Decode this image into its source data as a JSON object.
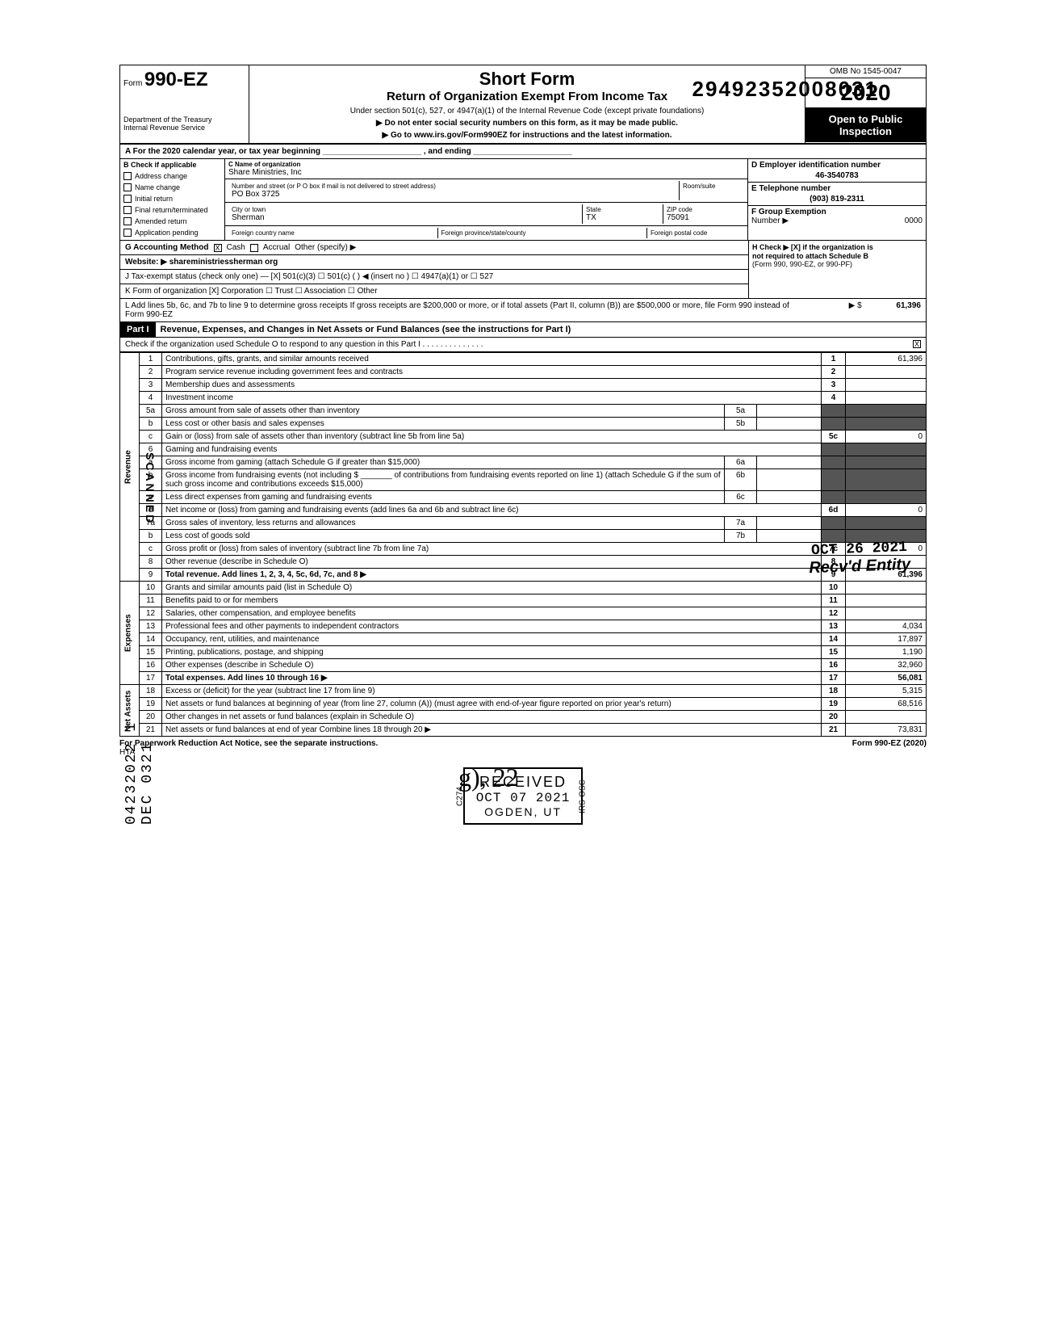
{
  "dln": "29492352008031",
  "form": {
    "prefix": "Form",
    "number": "990-EZ",
    "dept": "Department of the Treasury",
    "irs": "Internal Revenue Service"
  },
  "title": {
    "main": "Short Form",
    "sub": "Return of Organization Exempt From Income Tax",
    "line1": "Under section 501(c), 527, or 4947(a)(1) of the Internal Revenue Code (except private foundations)",
    "line2": "▶ Do not enter social security numbers on this form, as it may be made public.",
    "line3": "▶ Go to www.irs.gov/Form990EZ for instructions and the latest information."
  },
  "omb": "OMB No 1545-0047",
  "year": "2020",
  "open": {
    "l1": "Open to Public",
    "l2": "Inspection"
  },
  "rowA": "A   For the 2020 calendar year, or tax year beginning ______________________ , and ending ______________________",
  "colB": {
    "hdr": "B   Check if applicable",
    "items": [
      "Address change",
      "Name change",
      "Initial return",
      "Final return/terminated",
      "Amended return",
      "Application pending"
    ]
  },
  "colC": {
    "nameLbl": "C  Name of organization",
    "name": "Share Ministries, Inc",
    "addrLbl": "Number and street (or P O box if mail is not delivered to street address)",
    "addr": "PO Box 3725",
    "roomLbl": "Room/suite",
    "cityLbl": "City or town",
    "city": "Sherman",
    "stateLbl": "State",
    "state": "TX",
    "zipLbl": "ZIP code",
    "zip": "75091",
    "fcLbl": "Foreign country name",
    "fpLbl": "Foreign province/state/county",
    "fzLbl": "Foreign postal code"
  },
  "colD": {
    "einLbl": "D  Employer identification number",
    "ein": "46-3540783",
    "telLbl": "E  Telephone number",
    "tel": "(903) 819-2311",
    "grpLbl": "F  Group Exemption",
    "grpNumLbl": "Number ▶",
    "grpNum": "0000"
  },
  "rowG": {
    "label": "G   Accounting Method",
    "cash": "Cash",
    "accrual": "Accrual",
    "other": "Other (specify) ▶",
    "website": "Website: ▶ shareministriessherman org"
  },
  "rowH": {
    "l1": "H  Check ▶ [X] if the organization is",
    "l2": "not required to attach Schedule B",
    "l3": "(Form 990, 990-EZ, or 990-PF)"
  },
  "rowJ": "J    Tax-exempt status (check only one) —   [X] 501(c)(3)     ☐ 501(c) (      ) ◀ (insert no )    ☐ 4947(a)(1) or    ☐ 527",
  "rowK": "K   Form of organization        [X] Corporation        ☐ Trust        ☐ Association        ☐ Other",
  "rowL": {
    "text": "L   Add lines 5b, 6c, and 7b to line 9 to determine gross receipts  If gross receipts are $200,000 or more, or if total assets (Part II, column (B)) are $500,000 or more, file Form 990 instead of Form 990-EZ",
    "arrow": "▶ $",
    "val": "61,396"
  },
  "part1": {
    "tag": "Part I",
    "title": "Revenue, Expenses, and Changes in Net Assets or Fund Balances (see the instructions for Part I)",
    "chk": "Check if the organization used Schedule O to respond to any question in this Part I . . . . . . . . . . . . . .",
    "chkX": "X"
  },
  "sideLabels": {
    "revenue": "Revenue",
    "expenses": "Expenses",
    "netassets": "Net Assets"
  },
  "lines": [
    {
      "n": "1",
      "d": "Contributions, gifts, grants, and similar amounts received",
      "ln": "1",
      "v": "61,396"
    },
    {
      "n": "2",
      "d": "Program service revenue including government fees and contracts",
      "ln": "2",
      "v": ""
    },
    {
      "n": "3",
      "d": "Membership dues and assessments",
      "ln": "3",
      "v": ""
    },
    {
      "n": "4",
      "d": "Investment income",
      "ln": "4",
      "v": ""
    },
    {
      "n": "5a",
      "d": "Gross amount from sale of assets other than inventory",
      "sub": "5a",
      "sv": ""
    },
    {
      "n": "b",
      "d": "Less  cost or other basis and sales expenses",
      "sub": "5b",
      "sv": ""
    },
    {
      "n": "c",
      "d": "Gain or (loss) from sale of assets other than inventory (subtract line 5b from line 5a)",
      "ln": "5c",
      "v": "0"
    },
    {
      "n": "6",
      "d": "Gaming and fundraising events"
    },
    {
      "n": "a",
      "d": "Gross income from gaming (attach Schedule G if greater than $15,000)",
      "sub": "6a",
      "sv": ""
    },
    {
      "n": "b",
      "d": "Gross income from fundraising events (not including  $ _______ of contributions from fundraising events reported on line 1) (attach Schedule G if the sum of such gross income and contributions exceeds $15,000)",
      "sub": "6b",
      "sv": ""
    },
    {
      "n": "c",
      "d": "Less  direct expenses from gaming and fundraising events",
      "sub": "6c",
      "sv": ""
    },
    {
      "n": "d",
      "d": "Net income or (loss) from gaming and fundraising events (add lines 6a and 6b and subtract line 6c)",
      "ln": "6d",
      "v": "0"
    },
    {
      "n": "7a",
      "d": "Gross sales of inventory, less returns and allowances",
      "sub": "7a",
      "sv": ""
    },
    {
      "n": "b",
      "d": "Less  cost of goods sold",
      "sub": "7b",
      "sv": ""
    },
    {
      "n": "c",
      "d": "Gross profit or (loss) from sales of inventory (subtract line 7b from line 7a)",
      "ln": "7c",
      "v": "0"
    },
    {
      "n": "8",
      "d": "Other revenue (describe in Schedule O)",
      "ln": "8",
      "v": ""
    },
    {
      "n": "9",
      "d": "Total revenue. Add lines 1, 2, 3, 4, 5c, 6d, 7c, and 8",
      "ln": "9",
      "v": "61,396",
      "bold": true,
      "arrow": true
    },
    {
      "n": "10",
      "d": "Grants and similar amounts paid (list in Schedule O)",
      "ln": "10",
      "v": ""
    },
    {
      "n": "11",
      "d": "Benefits paid to or for members",
      "ln": "11",
      "v": ""
    },
    {
      "n": "12",
      "d": "Salaries, other compensation, and employee benefits",
      "ln": "12",
      "v": ""
    },
    {
      "n": "13",
      "d": "Professional fees and other payments to independent contractors",
      "ln": "13",
      "v": "4,034"
    },
    {
      "n": "14",
      "d": "Occupancy, rent, utilities, and maintenance",
      "ln": "14",
      "v": "17,897"
    },
    {
      "n": "15",
      "d": "Printing, publications, postage, and shipping",
      "ln": "15",
      "v": "1,190"
    },
    {
      "n": "16",
      "d": "Other expenses (describe in Schedule O)",
      "ln": "16",
      "v": "32,960"
    },
    {
      "n": "17",
      "d": "Total expenses. Add lines 10 through 16",
      "ln": "17",
      "v": "56,081",
      "bold": true,
      "arrow": true
    },
    {
      "n": "18",
      "d": "Excess or (deficit) for the year (subtract line 17 from line 9)",
      "ln": "18",
      "v": "5,315"
    },
    {
      "n": "19",
      "d": "Net assets or fund balances at beginning of year (from line 27, column (A)) (must agree with end-of-year figure reported on prior year's return)",
      "ln": "19",
      "v": "68,516"
    },
    {
      "n": "20",
      "d": "Other changes in net assets or fund balances (explain in Schedule O)",
      "ln": "20",
      "v": ""
    },
    {
      "n": "21",
      "d": "Net assets or fund balances at end of year  Combine lines 18 through 20",
      "ln": "21",
      "v": "73,831",
      "arrow": true
    }
  ],
  "footer": {
    "left": "For Paperwork Reduction Act Notice, see the separate instructions.",
    "hta": "HTA",
    "right": "Form 990-EZ (2020)"
  },
  "stamps": {
    "oct26": {
      "l1": "OCT 26 2021",
      "l2": "Recv'd Entity"
    },
    "rcvd": {
      "l1": "RECEIVED",
      "l2": "OCT 07 2021",
      "l3": "OGDEN, UT",
      "side1": "C274",
      "side2": "IRS-OSC"
    }
  },
  "handSig": "g), 22",
  "marginScanned": "SCANNED",
  "marginVert": "04232022 1 DEC 0321"
}
